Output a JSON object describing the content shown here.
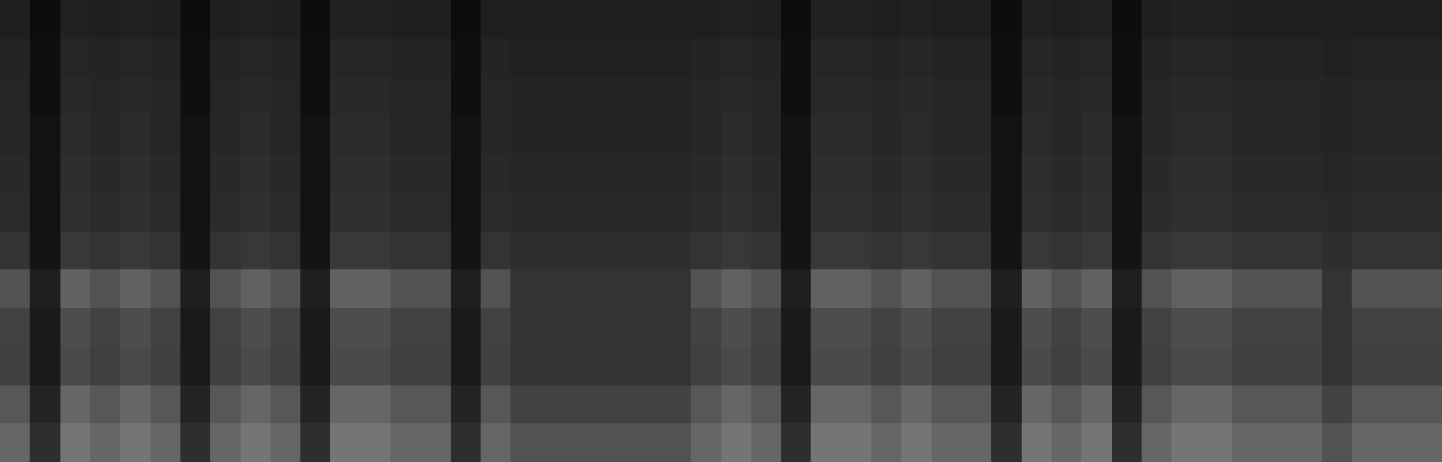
{
  "chart_data": {
    "type": "heatmap",
    "tick_labels": false,
    "grid": false,
    "zlim": [
      0,
      1
    ],
    "z": [
      [
        0.12,
        0.05,
        0.13,
        0.12,
        0.13,
        0.12,
        0.05,
        0.12,
        0.13,
        0.12,
        0.05,
        0.13,
        0.13,
        0.12,
        0.12,
        0.05,
        0.12,
        0.12,
        0.12,
        0.12,
        0.12,
        0.12,
        0.12,
        0.12,
        0.13,
        0.12,
        0.05,
        0.13,
        0.13,
        0.12,
        0.13,
        0.12,
        0.12,
        0.05,
        0.13,
        0.12,
        0.13,
        0.05,
        0.12,
        0.13,
        0.13,
        0.12,
        0.12,
        0.12,
        0.12,
        0.12,
        0.12,
        0.12
      ],
      [
        0.14,
        0.06,
        0.15,
        0.14,
        0.15,
        0.14,
        0.06,
        0.14,
        0.15,
        0.14,
        0.06,
        0.15,
        0.15,
        0.14,
        0.14,
        0.06,
        0.14,
        0.13,
        0.13,
        0.13,
        0.13,
        0.13,
        0.13,
        0.14,
        0.15,
        0.14,
        0.06,
        0.15,
        0.15,
        0.14,
        0.15,
        0.14,
        0.14,
        0.06,
        0.15,
        0.14,
        0.15,
        0.06,
        0.14,
        0.15,
        0.15,
        0.14,
        0.14,
        0.14,
        0.13,
        0.14,
        0.14,
        0.14
      ],
      [
        0.15,
        0.06,
        0.16,
        0.15,
        0.16,
        0.15,
        0.06,
        0.15,
        0.16,
        0.15,
        0.06,
        0.16,
        0.16,
        0.15,
        0.15,
        0.06,
        0.15,
        0.14,
        0.14,
        0.14,
        0.14,
        0.14,
        0.14,
        0.15,
        0.16,
        0.15,
        0.06,
        0.16,
        0.16,
        0.15,
        0.16,
        0.15,
        0.15,
        0.06,
        0.16,
        0.15,
        0.16,
        0.06,
        0.15,
        0.16,
        0.16,
        0.15,
        0.15,
        0.15,
        0.14,
        0.15,
        0.15,
        0.15
      ],
      [
        0.15,
        0.07,
        0.17,
        0.15,
        0.17,
        0.15,
        0.07,
        0.15,
        0.17,
        0.15,
        0.07,
        0.17,
        0.17,
        0.15,
        0.15,
        0.07,
        0.15,
        0.14,
        0.14,
        0.14,
        0.14,
        0.14,
        0.14,
        0.15,
        0.17,
        0.15,
        0.07,
        0.17,
        0.17,
        0.15,
        0.17,
        0.15,
        0.15,
        0.07,
        0.17,
        0.15,
        0.17,
        0.07,
        0.15,
        0.17,
        0.17,
        0.15,
        0.15,
        0.15,
        0.14,
        0.15,
        0.15,
        0.15
      ],
      [
        0.16,
        0.07,
        0.18,
        0.16,
        0.18,
        0.16,
        0.07,
        0.16,
        0.18,
        0.16,
        0.07,
        0.18,
        0.18,
        0.16,
        0.16,
        0.07,
        0.16,
        0.15,
        0.15,
        0.15,
        0.15,
        0.15,
        0.15,
        0.16,
        0.18,
        0.16,
        0.07,
        0.18,
        0.18,
        0.16,
        0.18,
        0.16,
        0.16,
        0.07,
        0.18,
        0.16,
        0.18,
        0.07,
        0.16,
        0.18,
        0.18,
        0.16,
        0.16,
        0.16,
        0.15,
        0.16,
        0.16,
        0.16
      ],
      [
        0.17,
        0.07,
        0.19,
        0.17,
        0.19,
        0.17,
        0.07,
        0.17,
        0.19,
        0.17,
        0.07,
        0.19,
        0.19,
        0.17,
        0.17,
        0.07,
        0.17,
        0.16,
        0.16,
        0.16,
        0.16,
        0.16,
        0.16,
        0.17,
        0.19,
        0.17,
        0.07,
        0.19,
        0.19,
        0.17,
        0.19,
        0.17,
        0.17,
        0.07,
        0.19,
        0.17,
        0.19,
        0.07,
        0.17,
        0.19,
        0.19,
        0.17,
        0.17,
        0.17,
        0.16,
        0.17,
        0.17,
        0.17
      ],
      [
        0.2,
        0.08,
        0.22,
        0.2,
        0.22,
        0.2,
        0.08,
        0.2,
        0.22,
        0.2,
        0.08,
        0.22,
        0.22,
        0.2,
        0.2,
        0.08,
        0.2,
        0.18,
        0.18,
        0.18,
        0.18,
        0.18,
        0.18,
        0.2,
        0.22,
        0.2,
        0.08,
        0.22,
        0.22,
        0.2,
        0.22,
        0.2,
        0.2,
        0.08,
        0.22,
        0.2,
        0.22,
        0.08,
        0.2,
        0.22,
        0.22,
        0.2,
        0.2,
        0.2,
        0.18,
        0.2,
        0.2,
        0.2
      ],
      [
        0.32,
        0.12,
        0.38,
        0.32,
        0.38,
        0.32,
        0.12,
        0.32,
        0.38,
        0.32,
        0.12,
        0.38,
        0.38,
        0.32,
        0.32,
        0.12,
        0.32,
        0.2,
        0.2,
        0.2,
        0.2,
        0.2,
        0.2,
        0.32,
        0.38,
        0.32,
        0.12,
        0.38,
        0.38,
        0.32,
        0.38,
        0.32,
        0.32,
        0.12,
        0.38,
        0.32,
        0.38,
        0.12,
        0.32,
        0.38,
        0.38,
        0.32,
        0.32,
        0.32,
        0.2,
        0.32,
        0.32,
        0.32
      ],
      [
        0.26,
        0.1,
        0.3,
        0.26,
        0.3,
        0.26,
        0.1,
        0.26,
        0.3,
        0.26,
        0.1,
        0.3,
        0.3,
        0.26,
        0.26,
        0.1,
        0.26,
        0.2,
        0.2,
        0.2,
        0.2,
        0.2,
        0.2,
        0.26,
        0.3,
        0.26,
        0.1,
        0.3,
        0.3,
        0.26,
        0.3,
        0.26,
        0.26,
        0.1,
        0.3,
        0.26,
        0.3,
        0.1,
        0.26,
        0.3,
        0.3,
        0.26,
        0.26,
        0.26,
        0.2,
        0.26,
        0.26,
        0.26
      ],
      [
        0.25,
        0.1,
        0.29,
        0.25,
        0.29,
        0.25,
        0.1,
        0.25,
        0.29,
        0.25,
        0.1,
        0.29,
        0.29,
        0.25,
        0.25,
        0.1,
        0.25,
        0.2,
        0.2,
        0.2,
        0.2,
        0.2,
        0.2,
        0.25,
        0.29,
        0.25,
        0.1,
        0.29,
        0.29,
        0.25,
        0.29,
        0.25,
        0.25,
        0.1,
        0.29,
        0.25,
        0.29,
        0.1,
        0.25,
        0.29,
        0.29,
        0.25,
        0.25,
        0.25,
        0.2,
        0.25,
        0.25,
        0.25
      ],
      [
        0.34,
        0.14,
        0.4,
        0.34,
        0.4,
        0.34,
        0.14,
        0.34,
        0.4,
        0.34,
        0.14,
        0.4,
        0.4,
        0.34,
        0.34,
        0.14,
        0.34,
        0.26,
        0.26,
        0.26,
        0.26,
        0.26,
        0.26,
        0.34,
        0.4,
        0.34,
        0.14,
        0.4,
        0.4,
        0.34,
        0.4,
        0.34,
        0.34,
        0.14,
        0.4,
        0.34,
        0.4,
        0.14,
        0.34,
        0.4,
        0.4,
        0.34,
        0.34,
        0.34,
        0.26,
        0.34,
        0.34,
        0.34
      ],
      [
        0.4,
        0.18,
        0.46,
        0.4,
        0.46,
        0.4,
        0.18,
        0.4,
        0.46,
        0.4,
        0.18,
        0.46,
        0.46,
        0.4,
        0.4,
        0.18,
        0.4,
        0.32,
        0.32,
        0.32,
        0.32,
        0.32,
        0.32,
        0.4,
        0.46,
        0.4,
        0.18,
        0.46,
        0.46,
        0.4,
        0.46,
        0.4,
        0.4,
        0.18,
        0.46,
        0.4,
        0.46,
        0.18,
        0.4,
        0.46,
        0.46,
        0.4,
        0.4,
        0.4,
        0.32,
        0.4,
        0.4,
        0.4
      ]
    ]
  }
}
